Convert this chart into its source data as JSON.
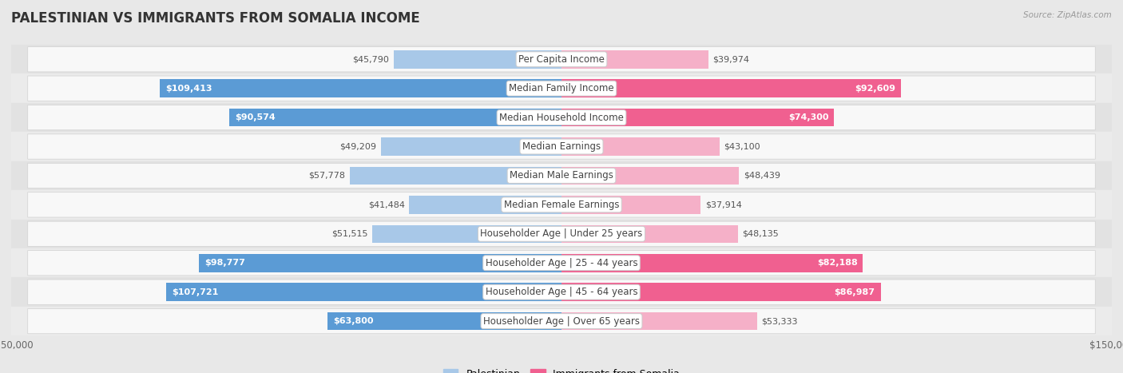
{
  "title": "PALESTINIAN VS IMMIGRANTS FROM SOMALIA INCOME",
  "source": "Source: ZipAtlas.com",
  "categories": [
    "Per Capita Income",
    "Median Family Income",
    "Median Household Income",
    "Median Earnings",
    "Median Male Earnings",
    "Median Female Earnings",
    "Householder Age | Under 25 years",
    "Householder Age | 25 - 44 years",
    "Householder Age | 45 - 64 years",
    "Householder Age | Over 65 years"
  ],
  "palestinian_values": [
    45790,
    109413,
    90574,
    49209,
    57778,
    41484,
    51515,
    98777,
    107721,
    63800
  ],
  "somalia_values": [
    39974,
    92609,
    74300,
    43100,
    48439,
    37914,
    48135,
    82188,
    86987,
    53333
  ],
  "max_value": 150000,
  "pal_color_light": "#a8c8e8",
  "pal_color_dark": "#5b9bd5",
  "som_color_light": "#f5b0c8",
  "som_color_dark": "#f06090",
  "bg_color": "#f0f0f0",
  "row_bg_even": "#f0f0f0",
  "row_bg_odd": "#e8e8e8",
  "row_inner_bg": "#fafafa",
  "bar_height": 0.62,
  "inside_threshold": 60000,
  "label_fontsize": 8.5,
  "title_fontsize": 12,
  "value_fontsize": 8,
  "legend_fontsize": 9
}
